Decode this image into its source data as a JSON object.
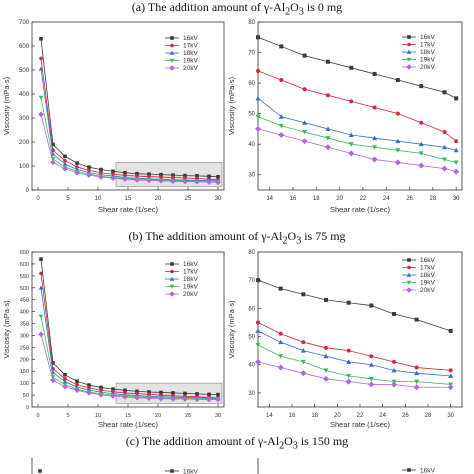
{
  "panels": [
    {
      "caption_pre": "(a) The addition amount of γ-Al",
      "caption_sub1": "2",
      "caption_mid": "O",
      "caption_sub2": "3",
      "caption_post": " is 0 mg"
    },
    {
      "caption_pre": "(b) The addition amount of γ-Al",
      "caption_sub1": "2",
      "caption_mid": "O",
      "caption_sub2": "3",
      "caption_post": " is 75 mg"
    },
    {
      "caption_pre": "(c) The addition amount of γ-Al",
      "caption_sub1": "2",
      "caption_mid": "O",
      "caption_sub2": "3",
      "caption_post": " is 150 mg"
    }
  ],
  "series_styles": [
    {
      "name": "16kV",
      "color": "#3a3a3a",
      "marker": "square"
    },
    {
      "name": "17kV",
      "color": "#d6283b",
      "marker": "circle"
    },
    {
      "name": "18kV",
      "color": "#2f6fc8",
      "marker": "triangle-up"
    },
    {
      "name": "19kV",
      "color": "#3dbb5a",
      "marker": "triangle-down"
    },
    {
      "name": "20kV",
      "color": "#b267d9",
      "marker": "diamond"
    }
  ],
  "chart_data": [
    {
      "type": "line",
      "panel": "a-full",
      "xlabel": "Shear rate (1/sec)",
      "ylabel": "Viscosity (mPa·s)",
      "xlim": [
        -1,
        31
      ],
      "ylim": [
        0,
        700
      ],
      "xticks": [
        0,
        5,
        10,
        15,
        20,
        25,
        30
      ],
      "yticks": [
        0,
        100,
        200,
        300,
        400,
        500,
        600,
        700
      ],
      "legend": "top-right",
      "zoom_region": {
        "x": [
          13,
          31
        ],
        "y": [
          15,
          115
        ]
      },
      "x": [
        0.5,
        2.5,
        4.5,
        6.5,
        8.5,
        10.5,
        12.5,
        14.5,
        16.5,
        18.5,
        20.5,
        22.5,
        24.5,
        26.5,
        28.5,
        30
      ],
      "series": [
        {
          "name": "16kV",
          "values": [
            630,
            190,
            140,
            112,
            95,
            85,
            78,
            72,
            68,
            66,
            64,
            62,
            60,
            59,
            57,
            55
          ]
        },
        {
          "name": "17kV",
          "values": [
            548,
            165,
            122,
            96,
            82,
            72,
            66,
            61,
            58,
            56,
            54,
            52,
            50,
            48,
            45,
            42
          ]
        },
        {
          "name": "18kV",
          "values": [
            505,
            150,
            108,
            86,
            73,
            64,
            58,
            52,
            48,
            46,
            44,
            42,
            41,
            40,
            39,
            38
          ]
        },
        {
          "name": "19kV",
          "values": [
            385,
            130,
            96,
            78,
            66,
            57,
            52,
            48,
            44,
            42,
            40,
            39,
            38,
            37,
            35,
            34
          ]
        },
        {
          "name": "20kV",
          "values": [
            315,
            115,
            88,
            72,
            62,
            54,
            49,
            45,
            42,
            40,
            38,
            36,
            35,
            34,
            33,
            32
          ]
        }
      ]
    },
    {
      "type": "line",
      "panel": "a-zoom",
      "xlabel": "Shear rate (1/sec)",
      "ylabel": "Viscosity (mPa·s)",
      "xlim": [
        13,
        30.5
      ],
      "ylim": [
        25,
        80
      ],
      "xticks": [
        14,
        16,
        18,
        20,
        22,
        24,
        26,
        28,
        30
      ],
      "yticks": [
        30,
        40,
        50,
        60,
        70,
        80
      ],
      "legend": "top-right",
      "x": [
        13,
        15,
        17,
        19,
        21,
        23,
        25,
        27,
        29,
        30
      ],
      "series": [
        {
          "name": "16kV",
          "values": [
            75,
            72,
            69,
            67,
            65,
            63,
            61,
            59,
            57,
            55
          ]
        },
        {
          "name": "17kV",
          "values": [
            64,
            61,
            58,
            56,
            54,
            52,
            50,
            47,
            44,
            41
          ]
        },
        {
          "name": "18kV",
          "values": [
            55,
            49,
            47,
            45,
            43,
            42,
            41,
            40,
            39,
            38
          ]
        },
        {
          "name": "19kV",
          "values": [
            49,
            46,
            44,
            42,
            40,
            39,
            38,
            37,
            35,
            34
          ]
        },
        {
          "name": "20kV",
          "values": [
            45,
            43,
            41,
            39,
            37,
            35,
            34,
            33,
            32,
            31
          ]
        }
      ]
    },
    {
      "type": "line",
      "panel": "b-full",
      "xlabel": "Shear rate (1/sec)",
      "ylabel": "Viscosity (mPa·s)",
      "xlim": [
        -1,
        31
      ],
      "ylim": [
        0,
        650
      ],
      "xticks": [
        0,
        5,
        10,
        15,
        20,
        25,
        30
      ],
      "yticks": [
        0,
        50,
        100,
        150,
        200,
        250,
        300,
        350,
        400,
        450,
        500,
        550,
        600,
        650
      ],
      "legend": "top-right",
      "zoom_region": {
        "x": [
          13,
          31
        ],
        "y": [
          15,
          100
        ]
      },
      "x": [
        0.5,
        2.5,
        4.5,
        6.5,
        8.5,
        10.5,
        12.5,
        14.5,
        16.5,
        18.5,
        20.5,
        22.5,
        24.5,
        26.5,
        28.5,
        30
      ],
      "series": [
        {
          "name": "16kV",
          "values": [
            620,
            185,
            135,
            108,
            92,
            82,
            75,
            70,
            66,
            63,
            61,
            59,
            57,
            55,
            53,
            52
          ]
        },
        {
          "name": "17kV",
          "values": [
            560,
            160,
            118,
            94,
            80,
            70,
            64,
            59,
            56,
            53,
            50,
            47,
            45,
            43,
            40,
            38
          ]
        },
        {
          "name": "18kV",
          "values": [
            500,
            145,
            106,
            84,
            71,
            62,
            56,
            51,
            48,
            45,
            43,
            41,
            40,
            39,
            37,
            36
          ]
        },
        {
          "name": "19kV",
          "values": [
            380,
            126,
            94,
            75,
            63,
            55,
            50,
            46,
            43,
            40,
            38,
            36,
            35,
            34,
            33,
            32
          ]
        },
        {
          "name": "20kV",
          "values": [
            305,
            112,
            85,
            70,
            59,
            51,
            46,
            42,
            39,
            37,
            35,
            34,
            33,
            32,
            31,
            31
          ]
        }
      ]
    },
    {
      "type": "line",
      "panel": "b-zoom",
      "xlabel": "Shear rate (1/sec)",
      "ylabel": "Viscosity (mPa·s)",
      "xlim": [
        13,
        31
      ],
      "ylim": [
        25,
        80
      ],
      "xticks": [
        14,
        16,
        18,
        20,
        22,
        24,
        26,
        28,
        30
      ],
      "yticks": [
        30,
        40,
        50,
        60,
        70,
        80
      ],
      "legend": "top-right",
      "x": [
        13,
        15,
        17,
        19,
        21,
        23,
        25,
        27,
        30
      ],
      "series": [
        {
          "name": "16kV",
          "values": [
            70,
            67,
            65,
            63,
            62,
            61,
            58,
            56,
            52
          ]
        },
        {
          "name": "17kV",
          "values": [
            55,
            51,
            48,
            46,
            45,
            43,
            41,
            39,
            38
          ]
        },
        {
          "name": "18kV",
          "values": [
            52,
            48,
            45,
            43,
            41,
            40,
            38,
            37,
            36
          ]
        },
        {
          "name": "19kV",
          "values": [
            47,
            43,
            41,
            38,
            36,
            35,
            34,
            34,
            33
          ]
        },
        {
          "name": "20kV",
          "values": [
            41,
            39,
            37,
            35,
            34,
            33,
            33,
            32,
            32
          ]
        }
      ]
    },
    {
      "type": "line",
      "panel": "c-full-partial",
      "legend": "top-right",
      "series": [
        {
          "name": "16kV",
          "values": []
        }
      ]
    },
    {
      "type": "line",
      "panel": "c-zoom-partial",
      "legend": "top-right",
      "series": [
        {
          "name": "16kV",
          "values": []
        }
      ]
    }
  ]
}
